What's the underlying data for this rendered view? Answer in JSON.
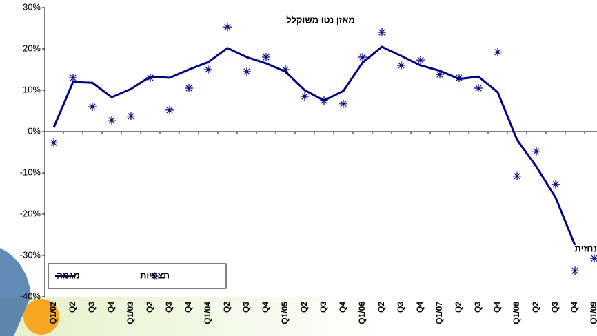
{
  "chart_data": {
    "type": "line",
    "annotation": "מאזן נטו משוקלל",
    "forecast_label": "נחזית",
    "categories": [
      "Q1/02",
      "Q2",
      "Q3",
      "Q4",
      "Q1/03",
      "Q2",
      "Q3",
      "Q4",
      "Q1/04",
      "Q2",
      "Q3",
      "Q4",
      "Q1/05",
      "Q2",
      "Q3",
      "Q4",
      "Q1/06",
      "Q2",
      "Q3",
      "Q4",
      "Q1/07",
      "Q2",
      "Q3",
      "Q4",
      "Q1/08",
      "Q2",
      "Q3",
      "Q4",
      "Q1/09"
    ],
    "series": [
      {
        "name": "מגמה",
        "color": "#000080",
        "style": "line",
        "values": [
          1,
          12,
          11.8,
          8.3,
          10.3,
          13.3,
          13,
          15,
          16.8,
          20.2,
          18,
          16.5,
          14.5,
          10,
          7.5,
          9.8,
          16.7,
          20.5,
          18.3,
          16,
          14.7,
          12.7,
          13.3,
          9.5,
          -2,
          -8.5,
          -16,
          -27.5,
          null
        ]
      },
      {
        "name": "תצפיות",
        "color": "#000080",
        "style": "asterisk",
        "values": [
          -2.7,
          13,
          6,
          2.7,
          3.7,
          13,
          5.2,
          10.5,
          15,
          25.3,
          14.5,
          18,
          15,
          8.5,
          7.5,
          6.7,
          18,
          24,
          16,
          17.3,
          13.8,
          13,
          10.5,
          19.2,
          -10.8,
          -4.8,
          -12.8,
          -33.7,
          -30.7
        ]
      }
    ],
    "ylim": [
      -40,
      30
    ],
    "yticks": [
      {
        "value": 30,
        "label": "30%"
      },
      {
        "value": 20,
        "label": "20%"
      },
      {
        "value": 10,
        "label": "10%"
      },
      {
        "value": 0,
        "label": "0%"
      },
      {
        "value": -10,
        "label": "-10%"
      },
      {
        "value": -20,
        "label": "-20%"
      },
      {
        "value": -30,
        "label": "-30%"
      },
      {
        "value": -40,
        "label": "-40%"
      }
    ],
    "legend": "bottom-left"
  }
}
